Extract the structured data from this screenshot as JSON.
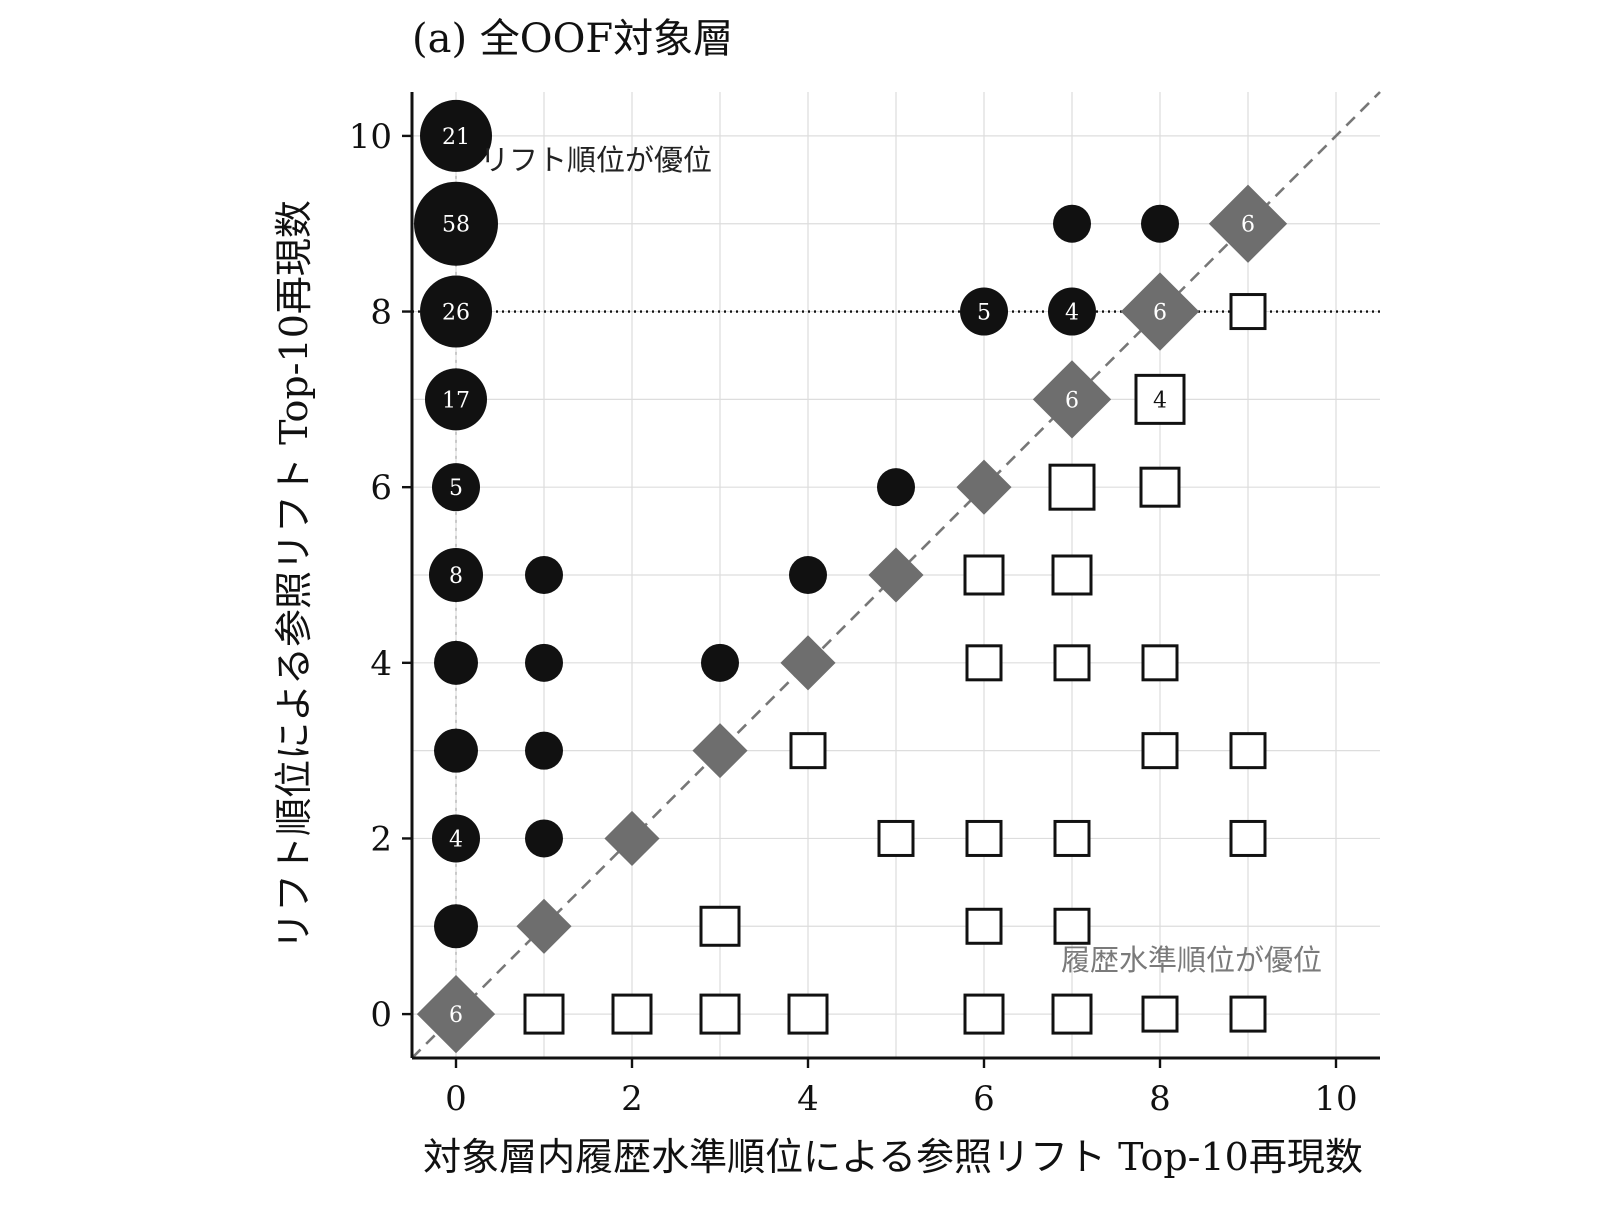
{
  "chart_data": {
    "type": "scatter",
    "title": "(a)  全OOF対象層",
    "xlabel": "対象層内履歴水準順位による参照リフト Top-10再現数",
    "ylabel": "リフト順位による参照リフト Top-10再現数",
    "xlim": [
      -0.5,
      10.5
    ],
    "ylim": [
      -0.5,
      10.5
    ],
    "x_ticks": [
      0,
      2,
      4,
      6,
      8,
      10
    ],
    "y_ticks": [
      0,
      2,
      4,
      6,
      8,
      10
    ],
    "grid": true,
    "reference_line": "y = x",
    "horizontal_reference_y": 8,
    "annotations": {
      "upper_left": "リフト順位が優位",
      "lower_right": "履歴水準順位が優位"
    },
    "colors": {
      "lift_better": "#111111",
      "tie": "#6e6e6e",
      "history_better": "#ffffff",
      "reference_line": "#777777"
    },
    "series": [
      {
        "marker": "circle",
        "points": [
          {
            "x": 0,
            "y": 10,
            "count": 21,
            "label": "21"
          },
          {
            "x": 0,
            "y": 9,
            "count": 58,
            "label": "58"
          },
          {
            "x": 0,
            "y": 8,
            "count": 26,
            "label": "26"
          },
          {
            "x": 0,
            "y": 7,
            "count": 17,
            "label": "17"
          },
          {
            "x": 0,
            "y": 6,
            "count": 5,
            "label": "5"
          },
          {
            "x": 0,
            "y": 5,
            "count": 8,
            "label": "8"
          },
          {
            "x": 0,
            "y": 4,
            "count": 3,
            "label": ""
          },
          {
            "x": 0,
            "y": 3,
            "count": 3,
            "label": ""
          },
          {
            "x": 0,
            "y": 2,
            "count": 4,
            "label": "4"
          },
          {
            "x": 0,
            "y": 1,
            "count": 3,
            "label": ""
          },
          {
            "x": 1,
            "y": 5,
            "count": 2,
            "label": ""
          },
          {
            "x": 1,
            "y": 4,
            "count": 2,
            "label": ""
          },
          {
            "x": 1,
            "y": 3,
            "count": 2,
            "label": ""
          },
          {
            "x": 1,
            "y": 2,
            "count": 2,
            "label": ""
          },
          {
            "x": 3,
            "y": 4,
            "count": 2,
            "label": ""
          },
          {
            "x": 4,
            "y": 5,
            "count": 2,
            "label": ""
          },
          {
            "x": 5,
            "y": 6,
            "count": 2,
            "label": ""
          },
          {
            "x": 6,
            "y": 8,
            "count": 5,
            "label": "5"
          },
          {
            "x": 7,
            "y": 9,
            "count": 2,
            "label": ""
          },
          {
            "x": 7,
            "y": 8,
            "count": 4,
            "label": "4"
          },
          {
            "x": 8,
            "y": 9,
            "count": 2,
            "label": ""
          }
        ]
      },
      {
        "marker": "diamond",
        "points": [
          {
            "x": 0,
            "y": 0,
            "count": 6,
            "label": "6"
          },
          {
            "x": 1,
            "y": 1,
            "count": 2,
            "label": ""
          },
          {
            "x": 2,
            "y": 2,
            "count": 2,
            "label": ""
          },
          {
            "x": 3,
            "y": 3,
            "count": 2,
            "label": ""
          },
          {
            "x": 4,
            "y": 4,
            "count": 2,
            "label": ""
          },
          {
            "x": 5,
            "y": 5,
            "count": 2,
            "label": ""
          },
          {
            "x": 6,
            "y": 6,
            "count": 2,
            "label": ""
          },
          {
            "x": 7,
            "y": 7,
            "count": 6,
            "label": "6"
          },
          {
            "x": 8,
            "y": 8,
            "count": 6,
            "label": "6"
          },
          {
            "x": 9,
            "y": 9,
            "count": 6,
            "label": "6"
          }
        ]
      },
      {
        "marker": "square",
        "points": [
          {
            "x": 1,
            "y": 0,
            "count": 2,
            "label": ""
          },
          {
            "x": 2,
            "y": 0,
            "count": 2,
            "label": ""
          },
          {
            "x": 3,
            "y": 0,
            "count": 2,
            "label": ""
          },
          {
            "x": 4,
            "y": 0,
            "count": 2,
            "label": ""
          },
          {
            "x": 6,
            "y": 0,
            "count": 2,
            "label": ""
          },
          {
            "x": 7,
            "y": 0,
            "count": 2,
            "label": ""
          },
          {
            "x": 8,
            "y": 0,
            "count": 1,
            "label": ""
          },
          {
            "x": 9,
            "y": 0,
            "count": 1,
            "label": ""
          },
          {
            "x": 3,
            "y": 1,
            "count": 2,
            "label": ""
          },
          {
            "x": 6,
            "y": 1,
            "count": 1,
            "label": ""
          },
          {
            "x": 7,
            "y": 1,
            "count": 1,
            "label": ""
          },
          {
            "x": 5,
            "y": 2,
            "count": 1,
            "label": ""
          },
          {
            "x": 6,
            "y": 2,
            "count": 1,
            "label": ""
          },
          {
            "x": 7,
            "y": 2,
            "count": 1,
            "label": ""
          },
          {
            "x": 9,
            "y": 2,
            "count": 1,
            "label": ""
          },
          {
            "x": 4,
            "y": 3,
            "count": 1,
            "label": ""
          },
          {
            "x": 8,
            "y": 3,
            "count": 1,
            "label": ""
          },
          {
            "x": 9,
            "y": 3,
            "count": 1,
            "label": ""
          },
          {
            "x": 6,
            "y": 4,
            "count": 1,
            "label": ""
          },
          {
            "x": 7,
            "y": 4,
            "count": 1,
            "label": ""
          },
          {
            "x": 8,
            "y": 4,
            "count": 1,
            "label": ""
          },
          {
            "x": 6,
            "y": 5,
            "count": 2,
            "label": ""
          },
          {
            "x": 7,
            "y": 5,
            "count": 2,
            "label": ""
          },
          {
            "x": 7,
            "y": 6,
            "count": 3,
            "label": ""
          },
          {
            "x": 8,
            "y": 6,
            "count": 2,
            "label": ""
          },
          {
            "x": 8,
            "y": 7,
            "count": 4,
            "label": "4"
          },
          {
            "x": 9,
            "y": 8,
            "count": 1,
            "label": ""
          }
        ]
      }
    ]
  }
}
